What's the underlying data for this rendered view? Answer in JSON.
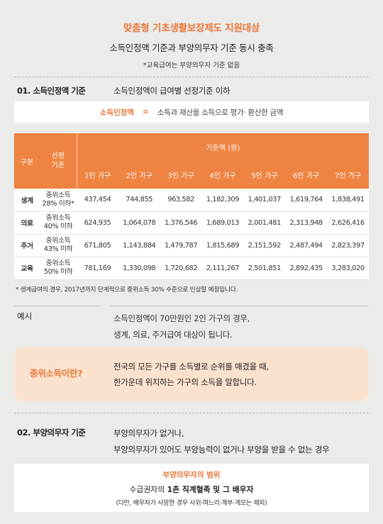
{
  "header": {
    "title": "맞춤형 기초생활보장제도 지원대상",
    "subtitle": "소득인정액 기준과 부양의무자 기준 동시 충족",
    "note": "*교육급여는 부양의무자 기준 없음"
  },
  "section1": {
    "label": "01. 소득인정액 기준",
    "text": "소득인정액이 급여별 선정기준 이하"
  },
  "definition": {
    "term": "소득인정액",
    "equals": "=",
    "description": "소득과 재산을 소득으로 평가· 환산한 금액"
  },
  "table": {
    "col_category": "구분",
    "col_criteria": "선정\n기준",
    "col_amount": "기준액 (원)",
    "households": [
      "1인 가구",
      "2인 가구",
      "3인 가구",
      "4인 가구",
      "5인 가구",
      "6인 가구",
      "7인 가구"
    ],
    "rows": [
      {
        "category": "생계",
        "criteria": "중위소득\n28% 이하*",
        "values": [
          "437,454",
          "744,855",
          "963,582",
          "1,182,309",
          "1,401,037",
          "1,619,764",
          "1,838,491"
        ]
      },
      {
        "category": "의료",
        "criteria": "중위소득\n40% 이하",
        "values": [
          "624,935",
          "1,064,078",
          "1,376,546",
          "1,689,013",
          "2,001,481",
          "2,313,948",
          "2,626,416"
        ]
      },
      {
        "category": "주거",
        "criteria": "중위소득\n43% 이하",
        "values": [
          "671,805",
          "1,143,884",
          "1,479,787",
          "1,815,689",
          "2,151,592",
          "2,487,494",
          "2,823,397"
        ]
      },
      {
        "category": "교육",
        "criteria": "중위소득\n50% 이하",
        "values": [
          "781,169",
          "1,330,098",
          "1,720,682",
          "2,111,267",
          "2,501,851",
          "2,892,435",
          "3,283,020"
        ]
      }
    ]
  },
  "footnote": "* 생계급여의 경우, 2017년까지 단계적으로 중위소득 30% 수준으로 인상할 예정입니다.",
  "example": {
    "label": "예시",
    "line1": "소득인정액이 70만원인 2인 가구의 경우,",
    "line2": "생계, 의료, 주거급여 대상이 됩니다."
  },
  "median": {
    "question": "중위소득이란?",
    "line1": "전국의 모든 가구를 소득별로 순위를 매겼을 때,",
    "line2": "한가운데 위치하는 가구의 소득을 말합니다."
  },
  "section2": {
    "label": "02. 부양의무자 기준",
    "line1": "부양의무자가 없거나,",
    "line2": "부양의무자가 있어도 부양능력이 없거나 부양을 받을 수 없는 경우"
  },
  "scope": {
    "title": "부양의무자의 범위",
    "prefix": "수급권자의 ",
    "bold": "1촌 직계혈족 및 그 배우자",
    "note": "(다만, 배우자가 사망한 경우 사위·며느리·계부·계모는 제외)"
  },
  "colors": {
    "accent": "#ea7637",
    "header_fill": "#ef8342",
    "background": "#ebebea",
    "highlight_box": "#fbe2cf"
  }
}
